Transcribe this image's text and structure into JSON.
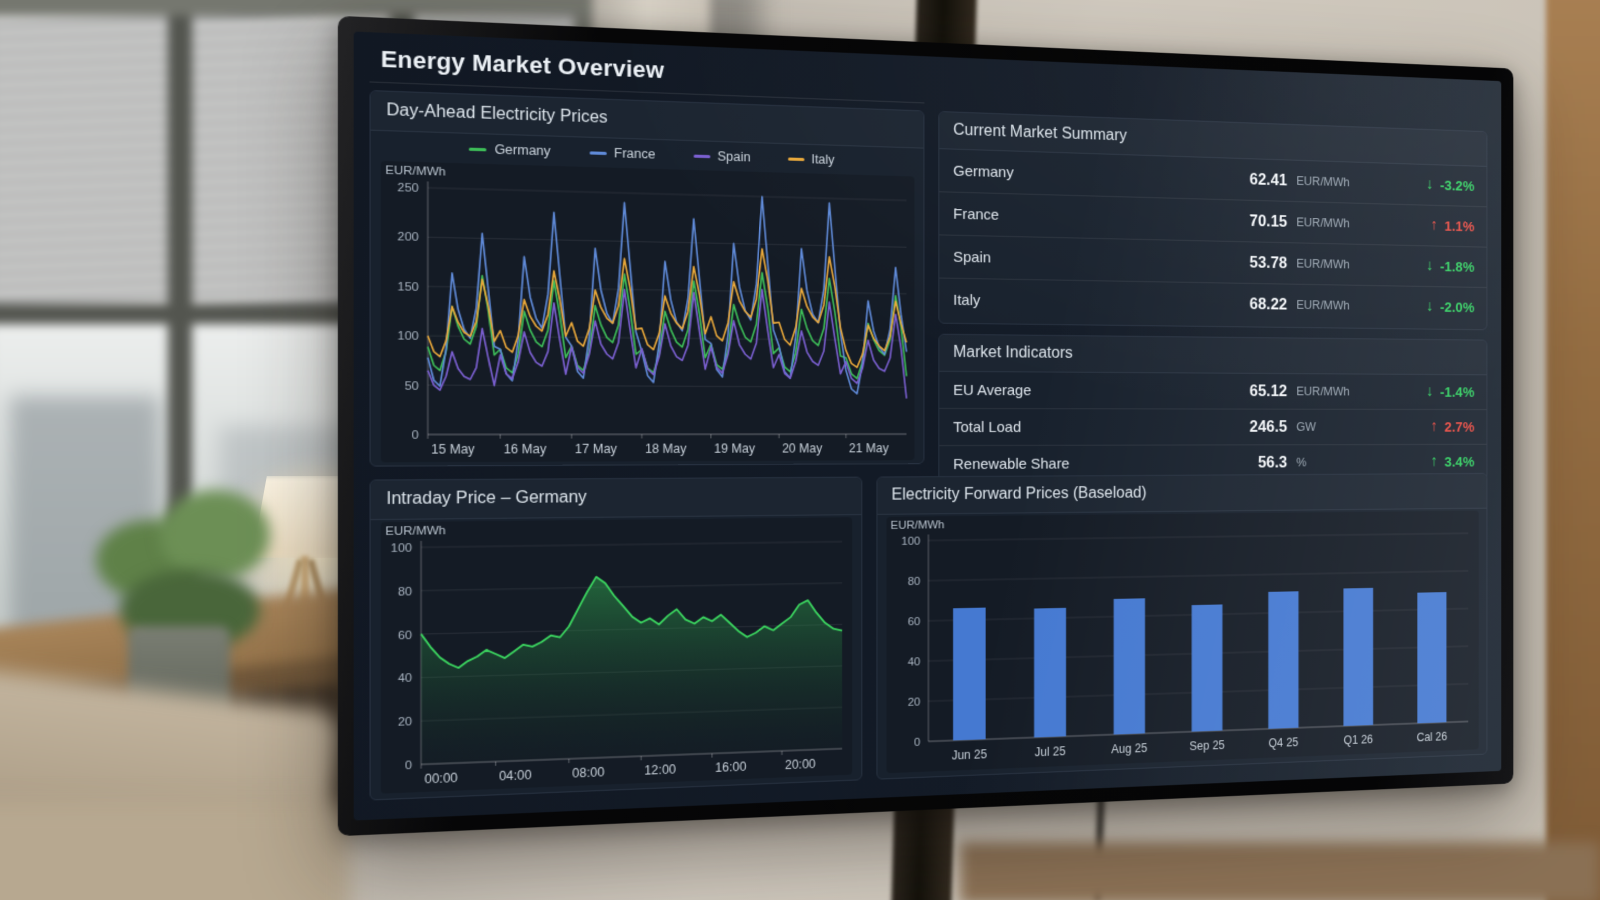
{
  "screen": {
    "header": {
      "title": "Energy Market Overview"
    },
    "summary": {
      "title": "Current Market Summary",
      "rows": [
        {
          "label": "Germany",
          "value": "62.41",
          "unit": "EUR/MWh",
          "direction": "down",
          "change": "-3.2%",
          "tone": "pos"
        },
        {
          "label": "France",
          "value": "70.15",
          "unit": "EUR/MWh",
          "direction": "up",
          "change": "1.1%",
          "tone": "neg"
        },
        {
          "label": "Spain",
          "value": "53.78",
          "unit": "EUR/MWh",
          "direction": "down",
          "change": "-1.8%",
          "tone": "pos"
        },
        {
          "label": "Italy",
          "value": "68.22",
          "unit": "EUR/MWh",
          "direction": "down",
          "change": "-2.0%",
          "tone": "pos"
        }
      ]
    },
    "indicators": {
      "title": "Market Indicators",
      "rows": [
        {
          "label": "EU Average",
          "value": "65.12",
          "unit": "EUR/MWh",
          "direction": "down",
          "change": "-1.4%",
          "tone": "pos"
        },
        {
          "label": "Total Load",
          "value": "246.5",
          "unit": "GW",
          "direction": "up",
          "change": "2.7%",
          "tone": "neg"
        },
        {
          "label": "Renewable Share",
          "value": "56.3",
          "unit": "%",
          "direction": "up",
          "change": "3.4%",
          "tone": "pos"
        }
      ]
    },
    "colors": {
      "positive": "#2ecc5e",
      "negative": "#e8483f",
      "panel": "#18212d",
      "screen_bg": "#121a25"
    }
  },
  "chart_data": [
    {
      "type": "line",
      "title": "Day-Ahead Electricity Prices",
      "ylabel": "EUR/MWh",
      "ylim": [
        0,
        250
      ],
      "yticks": [
        0,
        50,
        100,
        150,
        200,
        250
      ],
      "grid": true,
      "legend_position": "top",
      "x_tick_labels": [
        "15 May",
        "16 May",
        "17 May",
        "18 May",
        "19 May",
        "20 May",
        "21 May"
      ],
      "x_tick_every": 12,
      "series": [
        {
          "name": "Germany",
          "color": "#3dbd58",
          "values": [
            89,
            70,
            65,
            84,
            130,
            110,
            97,
            92,
            110,
            162,
            126,
            81,
            87,
            68,
            63,
            82,
            126,
            107,
            95,
            90,
            107,
            158,
            123,
            79,
            91,
            71,
            66,
            86,
            133,
            113,
            100,
            95,
            113,
            166,
            129,
            83,
            88,
            69,
            64,
            83,
            128,
            109,
            96,
            91,
            109,
            160,
            125,
            80,
            94,
            73,
            68,
            88,
            136,
            116,
            102,
            97,
            116,
            170,
            133,
            85,
            91,
            71,
            66,
            86,
            132,
            112,
            99,
            94,
            112,
            165,
            129,
            83,
            81,
            64,
            59,
            77,
            118,
            101,
            89,
            84,
            101,
            148,
            115,
            62
          ]
        },
        {
          "name": "France",
          "color": "#5f8ad8",
          "values": [
            78,
            55,
            49,
            86,
            164,
            127,
            107,
            98,
            129,
            205,
            148,
            90,
            87,
            62,
            55,
            96,
            182,
            141,
            119,
            109,
            144,
            228,
            164,
            100,
            91,
            65,
            58,
            101,
            192,
            149,
            125,
            115,
            151,
            240,
            173,
            106,
            86,
            61,
            54,
            95,
            180,
            140,
            117,
            108,
            142,
            225,
            162,
            99,
            95,
            68,
            60,
            105,
            200,
            155,
            130,
            120,
            158,
            250,
            180,
            110,
            93,
            66,
            59,
            103,
            196,
            152,
            127,
            118,
            154,
            245,
            176,
            108,
            68,
            48,
            43,
            75,
            142,
            110,
            93,
            85,
            112,
            178,
            128,
            88
          ]
        },
        {
          "name": "Spain",
          "color": "#7a5fd0",
          "values": [
            65,
            50,
            45,
            59,
            84,
            67,
            59,
            56,
            68,
            108,
            78,
            50,
            81,
            62,
            57,
            74,
            105,
            84,
            74,
            70,
            85,
            135,
            97,
            62,
            90,
            69,
            63,
            83,
            117,
            93,
            83,
            78,
            95,
            150,
            108,
            69,
            89,
            68,
            62,
            81,
            115,
            92,
            81,
            77,
            93,
            148,
            107,
            68,
            91,
            70,
            64,
            84,
            119,
            94,
            84,
            79,
            96,
            152,
            109,
            70,
            84,
            64,
            59,
            77,
            109,
            87,
            77,
            73,
            88,
            140,
            101,
            64,
            77,
            59,
            54,
            70,
            100,
            79,
            70,
            67,
            81,
            128,
            92,
            38
          ]
        },
        {
          "name": "Italy",
          "color": "#e9a83a",
          "values": [
            100,
            84,
            79,
            95,
            130,
            114,
            104,
            100,
            115,
            158,
            131,
            95,
            106,
            89,
            84,
            101,
            138,
            121,
            111,
            106,
            123,
            168,
            139,
            101,
            115,
            96,
            91,
            109,
            149,
            131,
            120,
            115,
            133,
            182,
            151,
            109,
            110,
            93,
            88,
            105,
            144,
            126,
            116,
            110,
            128,
            175,
            145,
            105,
            123,
            103,
            98,
            117,
            160,
            140,
            129,
            123,
            142,
            195,
            162,
            117,
            118,
            100,
            94,
            113,
            154,
            135,
            124,
            118,
            137,
            188,
            156,
            113,
            89,
            75,
            71,
            85,
            116,
            102,
            94,
            89,
            104,
            142,
            118,
            98
          ]
        }
      ]
    },
    {
      "type": "area",
      "title": "Intraday Price – Germany",
      "ylabel": "EUR/MWh",
      "ylim": [
        0,
        100
      ],
      "yticks": [
        0,
        20,
        40,
        60,
        80,
        100
      ],
      "grid": true,
      "x_tick_labels": [
        "00:00",
        "04:00",
        "08:00",
        "12:00",
        "16:00",
        "20:00"
      ],
      "x_tick_every": 8,
      "color": "#3bd45f",
      "fill_from": "rgba(46,160,77,0.55)",
      "fill_to": "rgba(22,62,40,0.05)",
      "values": [
        60,
        54,
        49,
        46,
        44,
        47,
        49,
        52,
        50,
        48,
        51,
        54,
        53,
        55,
        58,
        57,
        62,
        70,
        78,
        85,
        82,
        76,
        71,
        66,
        63,
        65,
        62,
        66,
        69,
        64,
        62,
        65,
        63,
        66,
        62,
        58,
        55,
        57,
        60,
        58,
        61,
        64,
        70,
        72,
        66,
        61,
        58,
        57
      ]
    },
    {
      "type": "bar",
      "title": "Electricity Forward Prices (Baseload)",
      "ylabel": "EUR/MWh",
      "ylim": [
        0,
        100
      ],
      "yticks": [
        0,
        20,
        40,
        60,
        80,
        100
      ],
      "grid": true,
      "bar_color": "#4579d1",
      "categories": [
        "Jun 25",
        "Jul 25",
        "Aug 25",
        "Sep 25",
        "Q4 25",
        "Q1 26",
        "Cal 26"
      ],
      "values": [
        66,
        65,
        69,
        65,
        71,
        72,
        69
      ]
    }
  ]
}
